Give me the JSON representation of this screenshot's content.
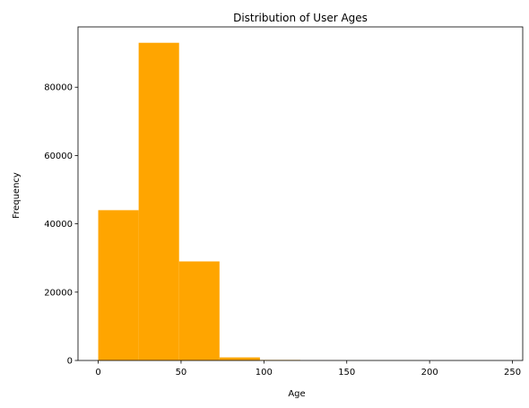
{
  "chart_data": {
    "type": "bar",
    "title": "Distribution of User Ages",
    "xlabel": "Age",
    "ylabel": "Frequency",
    "bar_color": "#FFA500",
    "bins": [
      {
        "start": 0.0,
        "end": 24.4,
        "value": 44000
      },
      {
        "start": 24.4,
        "end": 48.8,
        "value": 93000
      },
      {
        "start": 48.8,
        "end": 73.2,
        "value": 29000
      },
      {
        "start": 73.2,
        "end": 97.6,
        "value": 900
      },
      {
        "start": 97.6,
        "end": 122.0,
        "value": 150
      },
      {
        "start": 122.0,
        "end": 146.4,
        "value": 20
      },
      {
        "start": 146.4,
        "end": 170.8,
        "value": 5
      },
      {
        "start": 170.8,
        "end": 195.2,
        "value": 3
      },
      {
        "start": 195.2,
        "end": 219.6,
        "value": 2
      },
      {
        "start": 219.6,
        "end": 244.0,
        "value": 2
      }
    ],
    "xlim": [
      -12.2,
      256.2
    ],
    "ylim": [
      0,
      97650
    ],
    "x_ticks": [
      0,
      50,
      100,
      150,
      200,
      250
    ],
    "x_tick_labels": [
      "0",
      "50",
      "100",
      "150",
      "200",
      "250"
    ],
    "y_ticks": [
      0,
      20000,
      40000,
      60000,
      80000
    ],
    "y_tick_labels": [
      "0",
      "20000",
      "40000",
      "60000",
      "80000"
    ],
    "grid": false,
    "legend": "none"
  }
}
